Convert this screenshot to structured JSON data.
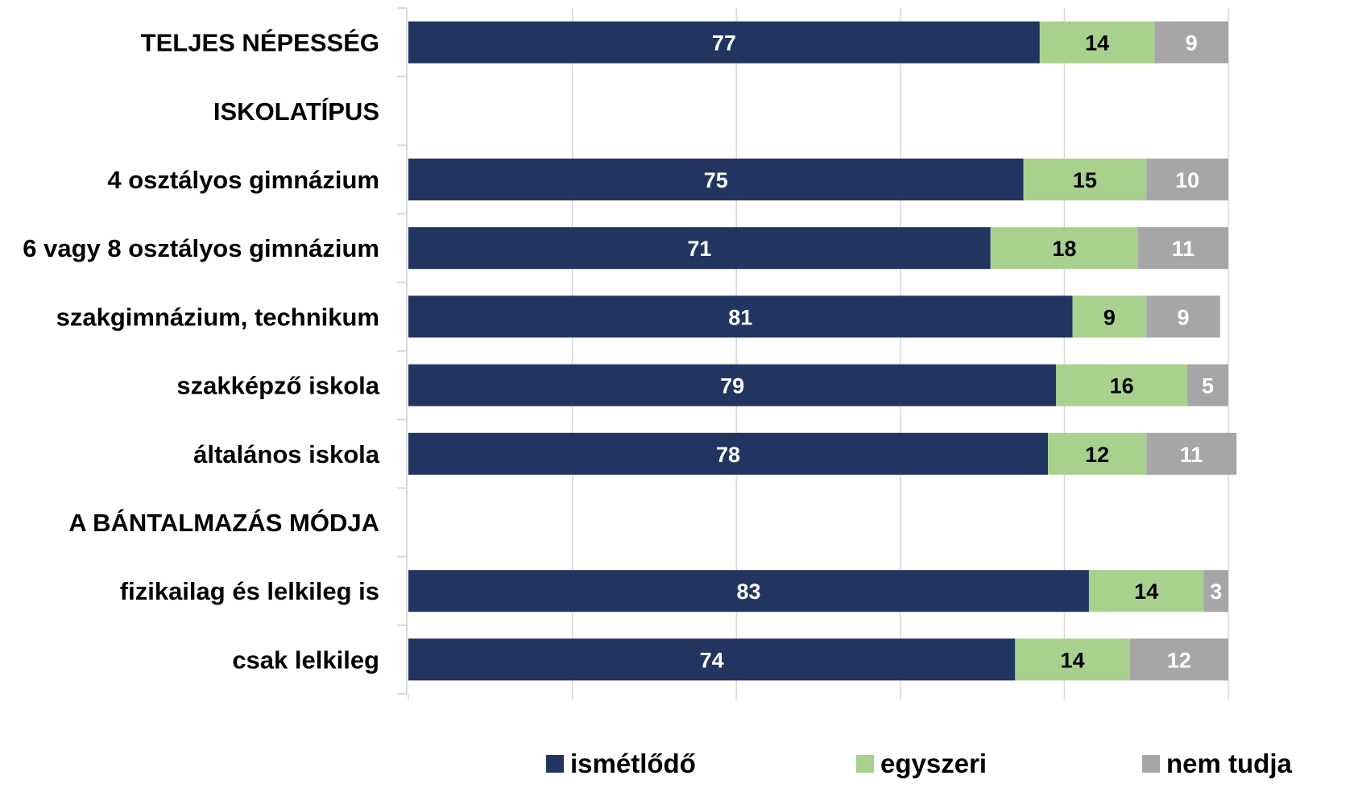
{
  "chart_data": {
    "type": "bar",
    "orientation": "horizontal",
    "stacked": true,
    "categories": [
      "TELJES NÉPESSÉG",
      "ISKOLATÍPUS",
      "4 osztályos gimnázium",
      "6 vagy 8 osztályos gimnázium",
      "szakgimnázium, technikum",
      "szakképző iskola",
      "általános iskola",
      "A BÁNTALMAZÁS MÓDJA",
      "fizikailag és lelkileg is",
      "csak lelkileg"
    ],
    "series": [
      {
        "name": "ismétlődő",
        "color": "#223561",
        "label_color": "#ffffff",
        "values": [
          77,
          null,
          75,
          71,
          81,
          79,
          78,
          null,
          83,
          74
        ]
      },
      {
        "name": "egyszeri",
        "color": "#a9d18e",
        "label_color": "#000000",
        "values": [
          14,
          null,
          15,
          18,
          9,
          16,
          12,
          null,
          14,
          14
        ]
      },
      {
        "name": "nem tudja",
        "color": "#a6a6a6",
        "label_color": "#ffffff",
        "values": [
          9,
          null,
          10,
          11,
          9,
          5,
          11,
          null,
          3,
          12
        ]
      }
    ],
    "xlim": [
      0,
      100
    ],
    "x_gridlines": [
      0,
      20,
      40,
      60,
      80,
      100
    ],
    "grid": true,
    "legend_position": "bottom",
    "title": "",
    "xlabel": "",
    "ylabel": ""
  }
}
